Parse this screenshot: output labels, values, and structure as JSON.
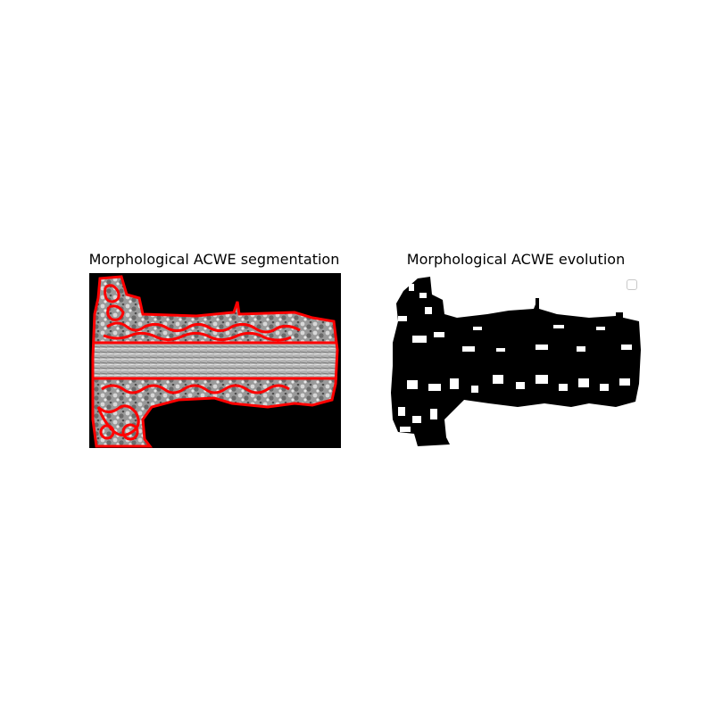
{
  "panels": {
    "left": {
      "title": "Morphological ACWE segmentation",
      "background_color": "#000000",
      "contour_color": "#ff0000"
    },
    "right": {
      "title": "Morphological ACWE evolution",
      "background_color": "#ffffff",
      "mask_color": "#000000"
    }
  },
  "legend": {
    "entries": []
  }
}
